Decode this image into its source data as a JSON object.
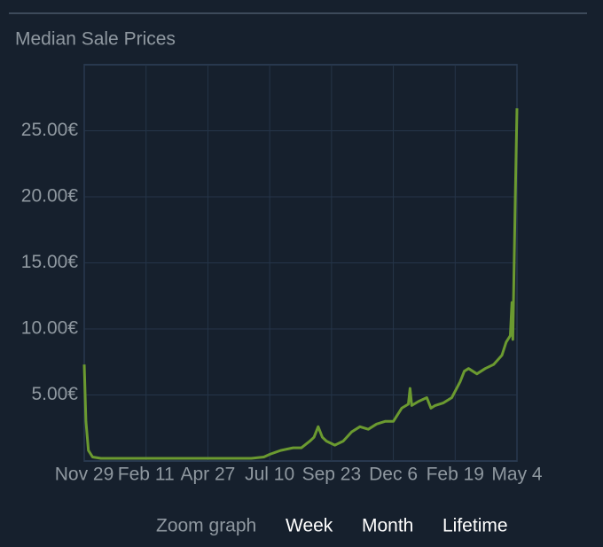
{
  "chart_data": {
    "type": "line",
    "title": "Median Sale Prices",
    "x": [
      0,
      2,
      5,
      10,
      20,
      40,
      60,
      80,
      100,
      120,
      140,
      160,
      180,
      200,
      215,
      222,
      235,
      250,
      260,
      270,
      275,
      280,
      285,
      290,
      300,
      310,
      320,
      330,
      340,
      350,
      360,
      370,
      380,
      388,
      390,
      392,
      400,
      410,
      415,
      420,
      430,
      440,
      450,
      455,
      460,
      470,
      480,
      490,
      500,
      505,
      510,
      512,
      513,
      515,
      516,
      518
    ],
    "series": [
      {
        "name": "Median Sale Price",
        "color": "#6b9a30",
        "values": [
          7.3,
          3.0,
          0.8,
          0.3,
          0.2,
          0.2,
          0.2,
          0.2,
          0.2,
          0.2,
          0.2,
          0.2,
          0.2,
          0.2,
          0.3,
          0.5,
          0.8,
          1.0,
          1.0,
          1.5,
          1.8,
          2.6,
          1.8,
          1.5,
          1.2,
          1.5,
          2.2,
          2.6,
          2.4,
          2.8,
          3.0,
          3.0,
          4.0,
          4.3,
          5.5,
          4.2,
          4.5,
          4.8,
          4.0,
          4.2,
          4.4,
          4.8,
          6.0,
          6.8,
          7.0,
          6.6,
          7.0,
          7.3,
          8.0,
          9.0,
          9.5,
          12.0,
          9.2,
          16.5,
          20.0,
          26.7
        ]
      }
    ],
    "xlim": [
      0,
      518
    ],
    "xticks": [
      {
        "value": 0,
        "label": "Nov 29"
      },
      {
        "value": 74,
        "label": "Feb 11"
      },
      {
        "value": 148,
        "label": "Apr 27"
      },
      {
        "value": 222,
        "label": "Jul 10"
      },
      {
        "value": 296,
        "label": "Sep 23"
      },
      {
        "value": 370,
        "label": "Dec 6"
      },
      {
        "value": 444,
        "label": "Feb 19"
      },
      {
        "value": 518,
        "label": "May 4"
      }
    ],
    "ylim": [
      0,
      30
    ],
    "yticks": [
      {
        "value": 5,
        "label": "5.00€"
      },
      {
        "value": 10,
        "label": "10.00€"
      },
      {
        "value": 15,
        "label": "15.00€"
      },
      {
        "value": 20,
        "label": "20.00€"
      },
      {
        "value": 25,
        "label": "25.00€"
      }
    ],
    "grid": true
  },
  "zoom": {
    "label": "Zoom graph",
    "options": [
      "Week",
      "Month",
      "Lifetime"
    ]
  }
}
